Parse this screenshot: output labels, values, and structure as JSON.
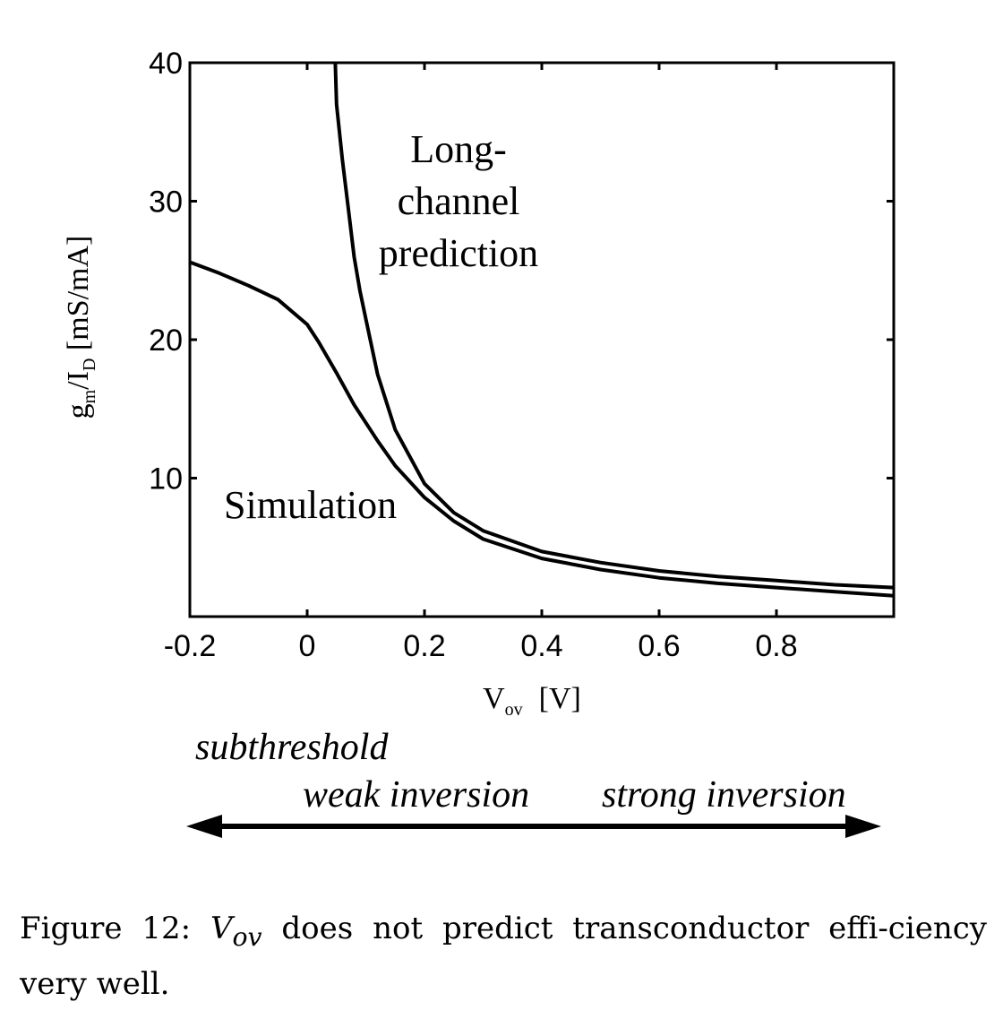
{
  "chart_data": {
    "type": "line",
    "xlabel": {
      "main": "V",
      "sub": "ov",
      "unit": "[V]"
    },
    "ylabel": {
      "main1": "g",
      "sub1": "m",
      "mid": "/I",
      "sub2": "D",
      "unit": " [mS/mA]"
    },
    "xlim": [
      -0.2,
      1.0
    ],
    "ylim": [
      0,
      40
    ],
    "xticks": [
      -0.2,
      0,
      0.2,
      0.4,
      0.6,
      0.8
    ],
    "xtick_labels": [
      "-0.2",
      "0",
      "0.2",
      "0.4",
      "0.6",
      "0.8"
    ],
    "yticks": [
      10,
      20,
      30,
      40
    ],
    "ytick_labels": [
      "10",
      "20",
      "30",
      "40"
    ],
    "grid": false,
    "series": [
      {
        "name": "Long-channel prediction",
        "x": [
          0.048,
          0.05,
          0.06,
          0.07,
          0.08,
          0.09,
          0.1,
          0.12,
          0.15,
          0.2,
          0.25,
          0.3,
          0.4,
          0.5,
          0.6,
          0.7,
          0.8,
          0.9,
          1.0
        ],
        "y": [
          40.0,
          37.0,
          33.0,
          29.5,
          26.0,
          23.5,
          21.5,
          17.5,
          13.5,
          9.6,
          7.5,
          6.2,
          4.7,
          3.9,
          3.3,
          2.9,
          2.6,
          2.3,
          2.1
        ]
      },
      {
        "name": "Simulation",
        "x": [
          -0.2,
          -0.15,
          -0.1,
          -0.05,
          0.0,
          0.02,
          0.05,
          0.08,
          0.1,
          0.12,
          0.15,
          0.2,
          0.25,
          0.3,
          0.4,
          0.5,
          0.6,
          0.7,
          0.8,
          0.9,
          1.0
        ],
        "y": [
          25.6,
          24.8,
          23.9,
          22.9,
          21.1,
          19.8,
          17.6,
          15.3,
          14.0,
          12.7,
          10.9,
          8.6,
          6.9,
          5.6,
          4.2,
          3.4,
          2.8,
          2.4,
          2.1,
          1.8,
          1.5
        ]
      }
    ],
    "annotations": {
      "long_channel": [
        "Long-",
        "channel",
        "prediction"
      ],
      "simulation": "Simulation"
    }
  },
  "regions": {
    "subthreshold": "subthreshold",
    "weak": "weak inversion",
    "strong": "strong inversion"
  },
  "caption": {
    "prefix": "Figure 12: ",
    "symbol_main": "V",
    "symbol_sub": "ov",
    "rest": " does not predict transconductor effi-ciency very well."
  }
}
